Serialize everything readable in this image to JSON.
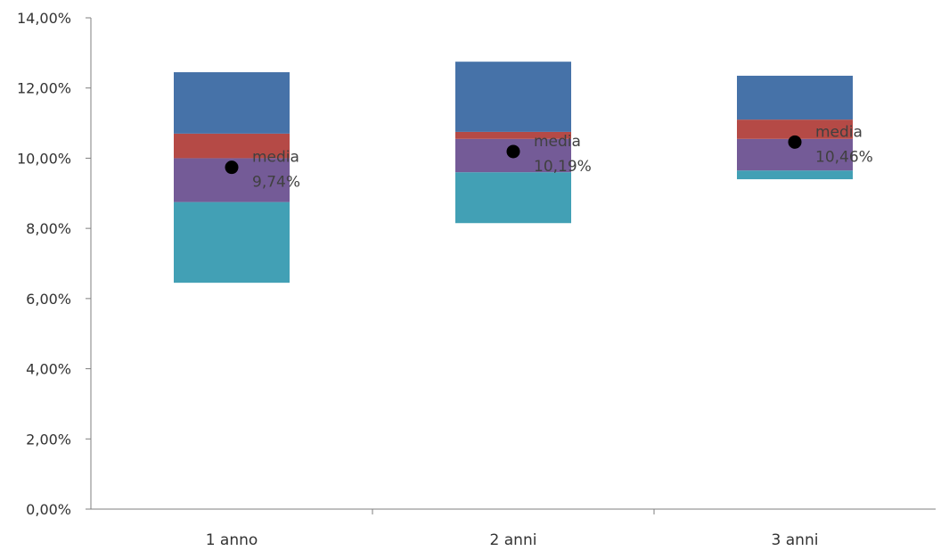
{
  "chart_data": {
    "type": "bar",
    "stacked": true,
    "floating": true,
    "categories": [
      "1 anno",
      "2 anni",
      "3 anni"
    ],
    "yticks": [
      "0,00%",
      "2,00%",
      "4,00%",
      "6,00%",
      "8,00%",
      "10,00%",
      "12,00%",
      "14,00%"
    ],
    "ylim": [
      0,
      14
    ],
    "y_unit": "%",
    "grid": false,
    "legend": "none",
    "colors": [
      "#42a0b5",
      "#745b97",
      "#b54a46",
      "#4672a8"
    ],
    "series": [
      {
        "values": [
          6.45,
          8.15,
          9.4
        ]
      },
      {
        "values": [
          2.3,
          1.45,
          0.25
        ]
      },
      {
        "values": [
          1.25,
          0.95,
          0.9
        ]
      },
      {
        "values": [
          0.7,
          0.2,
          0.55
        ]
      },
      {
        "values": [
          1.75,
          2.0,
          1.25
        ]
      }
    ],
    "segment_series": [
      1,
      2,
      3,
      4
    ],
    "mean_marker": {
      "label": "media",
      "values": [
        9.74,
        10.19,
        10.46
      ],
      "value_labels": [
        "9,74%",
        "10,19%",
        "10,46%"
      ],
      "color": "#000000"
    }
  }
}
